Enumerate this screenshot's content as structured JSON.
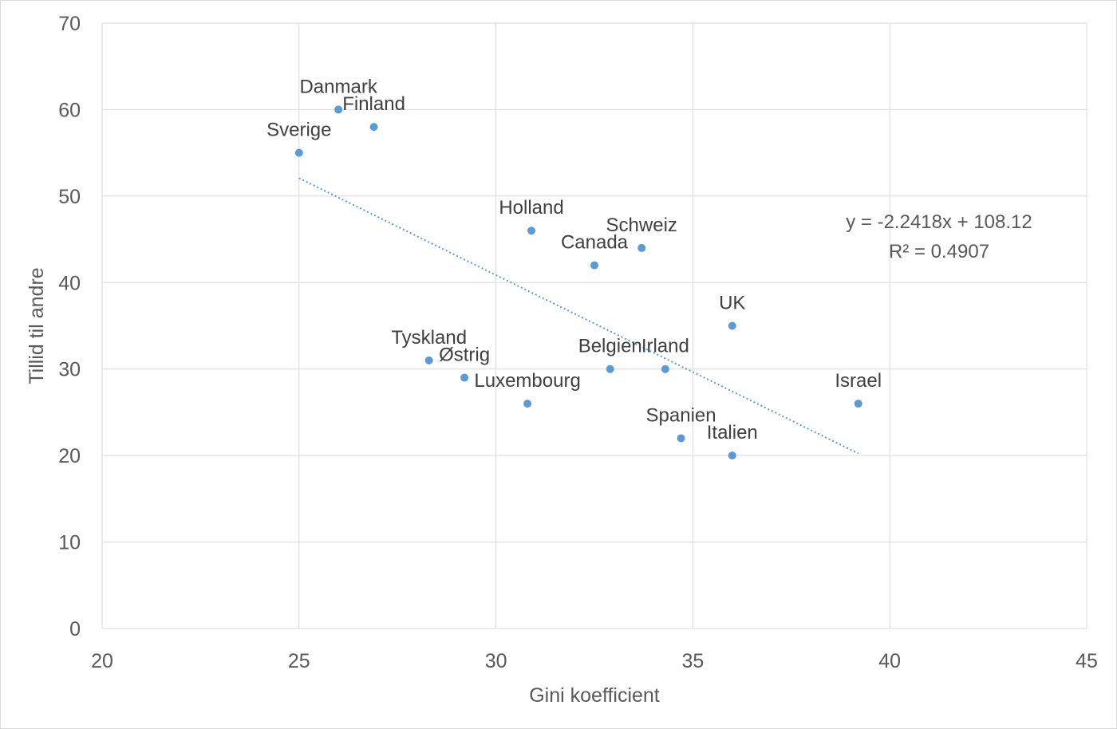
{
  "chart_data": {
    "type": "scatter",
    "xlabel": "Gini koefficient",
    "ylabel": "Tillid til andre",
    "xlim": [
      20,
      45
    ],
    "ylim": [
      0,
      70
    ],
    "x_ticks": [
      20,
      25,
      30,
      35,
      40,
      45
    ],
    "y_ticks": [
      0,
      10,
      20,
      30,
      40,
      50,
      60,
      70
    ],
    "grid": true,
    "marker_color": "#5b9bd5",
    "points": [
      {
        "label": "Danmark",
        "x": 26.0,
        "y": 60
      },
      {
        "label": "Finland",
        "x": 26.9,
        "y": 58
      },
      {
        "label": "Sverige",
        "x": 25.0,
        "y": 55
      },
      {
        "label": "Holland",
        "x": 30.9,
        "y": 46
      },
      {
        "label": "Schweiz",
        "x": 33.7,
        "y": 44
      },
      {
        "label": "Canada",
        "x": 32.5,
        "y": 42
      },
      {
        "label": "UK",
        "x": 36.0,
        "y": 35
      },
      {
        "label": "Tyskland",
        "x": 28.3,
        "y": 31
      },
      {
        "label": "Østrig",
        "x": 29.2,
        "y": 29
      },
      {
        "label": "Belgien",
        "x": 32.9,
        "y": 30
      },
      {
        "label": "Irland",
        "x": 34.3,
        "y": 30
      },
      {
        "label": "Luxembourg",
        "x": 30.8,
        "y": 26
      },
      {
        "label": "Israel",
        "x": 39.2,
        "y": 26
      },
      {
        "label": "Spanien",
        "x": 34.7,
        "y": 22
      },
      {
        "label": "Italien",
        "x": 36.0,
        "y": 20
      }
    ],
    "trendline": {
      "type": "linear",
      "slope": -2.2418,
      "intercept": 108.12,
      "x_range": [
        25.0,
        39.2
      ],
      "color": "#5b9bd5",
      "style": "dotted",
      "equation_text": "y = -2.2418x + 108.12",
      "r2_text": "R² = 0.4907"
    }
  }
}
